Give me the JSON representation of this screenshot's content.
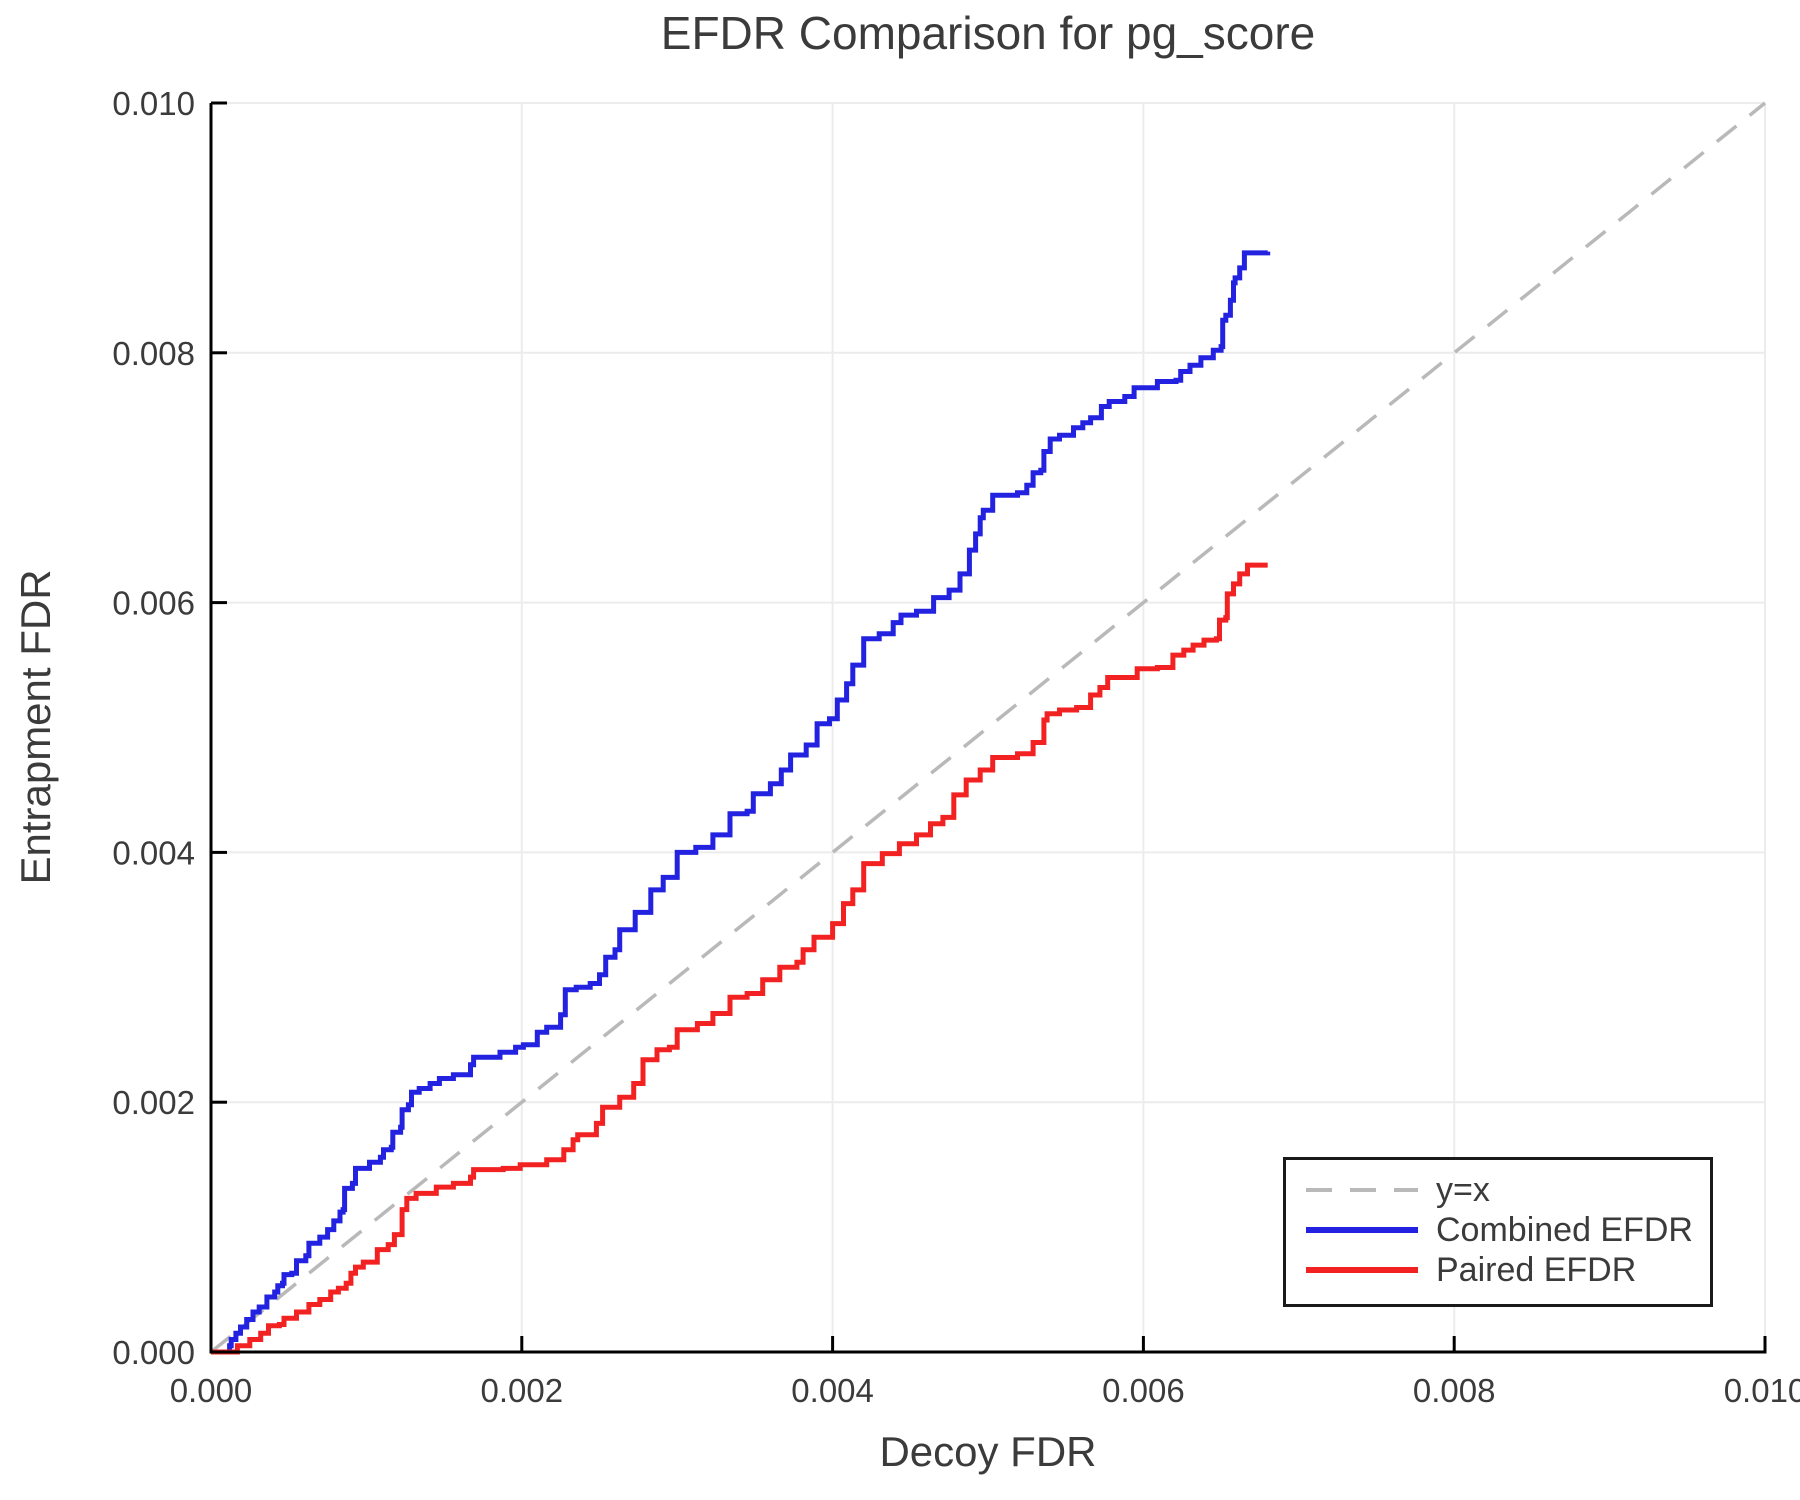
{
  "title": "EFDR Comparison for pg_score",
  "legend": {
    "items": [
      {
        "label": "y=x",
        "color": "#b9b9b9",
        "dashed": true
      },
      {
        "label": "Combined EFDR",
        "color": "#2222e0",
        "dashed": false
      },
      {
        "label": "Paired EFDR",
        "color": "#f22222",
        "dashed": false
      }
    ]
  },
  "chart_data": {
    "type": "line",
    "title": "EFDR Comparison for pg_score",
    "xlabel": "Decoy FDR",
    "ylabel": "Entrapment FDR",
    "xlim": [
      0,
      0.01
    ],
    "ylim": [
      0,
      0.01
    ],
    "xticks": [
      0,
      0.002,
      0.004,
      0.006,
      0.008,
      0.01
    ],
    "xtick_labels": [
      "0.000",
      "0.002",
      "0.004",
      "0.006",
      "0.008",
      "0.010"
    ],
    "yticks": [
      0,
      0.002,
      0.004,
      0.006,
      0.008,
      0.01
    ],
    "ytick_labels": [
      "0.000",
      "0.002",
      "0.004",
      "0.006",
      "0.008",
      "0.010"
    ],
    "grid": true,
    "legend_position": "lower right",
    "style": {
      "grid_color": "#ececec",
      "spine_color": "#000000",
      "text_color": "#3b3b3b",
      "background": "#ffffff"
    },
    "reference_line": {
      "label": "y=x",
      "style": "dashed",
      "color": "#b9b9b9",
      "from": [
        0,
        0
      ],
      "to": [
        0.01,
        0.01
      ]
    },
    "series": [
      {
        "name": "Combined EFDR",
        "color": "#2222e0",
        "style": "step",
        "points": [
          [
            0,
            0
          ],
          [
            0.00012,
            5e-05
          ],
          [
            0.00013,
            0.0001
          ],
          [
            0.00016,
            0.00015
          ],
          [
            0.00019,
            0.0002
          ],
          [
            0.00023,
            0.00026
          ],
          [
            0.00027,
            0.00032
          ],
          [
            0.00031,
            0.00036
          ],
          [
            0.00036,
            0.00044
          ],
          [
            0.00041,
            0.00048
          ],
          [
            0.00043,
            0.00053
          ],
          [
            0.00046,
            0.00055
          ],
          [
            0.00047,
            0.00062
          ],
          [
            0.00052,
            0.00063
          ],
          [
            0.00055,
            0.00073
          ],
          [
            0.00061,
            0.00077
          ],
          [
            0.00063,
            0.00087
          ],
          [
            0.0007,
            0.00092
          ],
          [
            0.00075,
            0.00098
          ],
          [
            0.00079,
            0.00105
          ],
          [
            0.00083,
            0.00112
          ],
          [
            0.00085,
            0.00114
          ],
          [
            0.00086,
            0.00131
          ],
          [
            0.00091,
            0.00135
          ],
          [
            0.00093,
            0.00147
          ],
          [
            0.00102,
            0.00152
          ],
          [
            0.00109,
            0.00156
          ],
          [
            0.00111,
            0.00162
          ],
          [
            0.00116,
            0.00164
          ],
          [
            0.00117,
            0.00176
          ],
          [
            0.00122,
            0.0018
          ],
          [
            0.00123,
            0.00194
          ],
          [
            0.00127,
            0.00198
          ],
          [
            0.00129,
            0.00208
          ],
          [
            0.00134,
            0.00211
          ],
          [
            0.00141,
            0.00215
          ],
          [
            0.00147,
            0.00219
          ],
          [
            0.00156,
            0.00222
          ],
          [
            0.00167,
            0.0023
          ],
          [
            0.00169,
            0.00236
          ],
          [
            0.00186,
            0.0024
          ],
          [
            0.00196,
            0.00244
          ],
          [
            0.00201,
            0.00246
          ],
          [
            0.0021,
            0.00256
          ],
          [
            0.00216,
            0.0026
          ],
          [
            0.00225,
            0.0027
          ],
          [
            0.00228,
            0.0029
          ],
          [
            0.00235,
            0.00292
          ],
          [
            0.00244,
            0.00295
          ],
          [
            0.0025,
            0.00302
          ],
          [
            0.00254,
            0.00316
          ],
          [
            0.0026,
            0.00322
          ],
          [
            0.00263,
            0.00338
          ],
          [
            0.00273,
            0.00352
          ],
          [
            0.00283,
            0.0037
          ],
          [
            0.00291,
            0.0038
          ],
          [
            0.003,
            0.004
          ],
          [
            0.00312,
            0.00404
          ],
          [
            0.00323,
            0.00414
          ],
          [
            0.00334,
            0.00431
          ],
          [
            0.00345,
            0.00433
          ],
          [
            0.00349,
            0.00447
          ],
          [
            0.0036,
            0.00455
          ],
          [
            0.00367,
            0.00466
          ],
          [
            0.00373,
            0.00478
          ],
          [
            0.00383,
            0.00486
          ],
          [
            0.0039,
            0.00503
          ],
          [
            0.00398,
            0.00507
          ],
          [
            0.00403,
            0.00522
          ],
          [
            0.00409,
            0.00535
          ],
          [
            0.00413,
            0.0055
          ],
          [
            0.0042,
            0.00571
          ],
          [
            0.0043,
            0.00575
          ],
          [
            0.00439,
            0.00584
          ],
          [
            0.00444,
            0.0059
          ],
          [
            0.00454,
            0.00593
          ],
          [
            0.00465,
            0.00604
          ],
          [
            0.00475,
            0.0061
          ],
          [
            0.00482,
            0.00623
          ],
          [
            0.00488,
            0.00642
          ],
          [
            0.00492,
            0.00655
          ],
          [
            0.00495,
            0.00668
          ],
          [
            0.00497,
            0.00674
          ],
          [
            0.00503,
            0.00686
          ],
          [
            0.00519,
            0.00688
          ],
          [
            0.00525,
            0.00694
          ],
          [
            0.00529,
            0.00704
          ],
          [
            0.00534,
            0.00706
          ],
          [
            0.00536,
            0.00721
          ],
          [
            0.0054,
            0.00731
          ],
          [
            0.00546,
            0.00734
          ],
          [
            0.00555,
            0.0074
          ],
          [
            0.00561,
            0.00744
          ],
          [
            0.00566,
            0.00748
          ],
          [
            0.00573,
            0.00757
          ],
          [
            0.00578,
            0.00761
          ],
          [
            0.00588,
            0.00765
          ],
          [
            0.00594,
            0.00772
          ],
          [
            0.00609,
            0.00777
          ],
          [
            0.00621,
            0.00778
          ],
          [
            0.00624,
            0.00785
          ],
          [
            0.0063,
            0.0079
          ],
          [
            0.00637,
            0.00796
          ],
          [
            0.00645,
            0.00802
          ],
          [
            0.0065,
            0.00805
          ],
          [
            0.00651,
            0.00826
          ],
          [
            0.00653,
            0.0083
          ],
          [
            0.00656,
            0.00842
          ],
          [
            0.00658,
            0.00856
          ],
          [
            0.00659,
            0.0086
          ],
          [
            0.00662,
            0.00868
          ],
          [
            0.00665,
            0.0088
          ],
          [
            0.0068,
            0.00881
          ]
        ]
      },
      {
        "name": "Paired EFDR",
        "color": "#f22222",
        "style": "step",
        "points": [
          [
            0,
            0
          ],
          [
            0.00012,
            0
          ],
          [
            0.00017,
            5e-05
          ],
          [
            0.00025,
            0.0001
          ],
          [
            0.00032,
            0.00015
          ],
          [
            0.00037,
            0.00021
          ],
          [
            0.00044,
            0.00022
          ],
          [
            0.00047,
            0.00027
          ],
          [
            0.00055,
            0.00032
          ],
          [
            0.00063,
            0.00038
          ],
          [
            0.0007,
            0.00042
          ],
          [
            0.00077,
            0.00048
          ],
          [
            0.00082,
            0.00051
          ],
          [
            0.00087,
            0.00055
          ],
          [
            0.0009,
            0.00063
          ],
          [
            0.00093,
            0.00068
          ],
          [
            0.00098,
            0.00072
          ],
          [
            0.00107,
            0.00082
          ],
          [
            0.00114,
            0.00086
          ],
          [
            0.00118,
            0.00094
          ],
          [
            0.00123,
            0.00114
          ],
          [
            0.00126,
            0.00123
          ],
          [
            0.00132,
            0.00127
          ],
          [
            0.00145,
            0.00132
          ],
          [
            0.00156,
            0.00135
          ],
          [
            0.00167,
            0.0014
          ],
          [
            0.00169,
            0.00146
          ],
          [
            0.00188,
            0.00147
          ],
          [
            0.00199,
            0.0015
          ],
          [
            0.00216,
            0.00154
          ],
          [
            0.00227,
            0.00162
          ],
          [
            0.00233,
            0.0017
          ],
          [
            0.00236,
            0.00174
          ],
          [
            0.00248,
            0.00183
          ],
          [
            0.00252,
            0.00196
          ],
          [
            0.00263,
            0.00204
          ],
          [
            0.00272,
            0.00215
          ],
          [
            0.00278,
            0.00234
          ],
          [
            0.00287,
            0.00242
          ],
          [
            0.00295,
            0.00244
          ],
          [
            0.003,
            0.00258
          ],
          [
            0.00313,
            0.00263
          ],
          [
            0.00323,
            0.00271
          ],
          [
            0.00334,
            0.00284
          ],
          [
            0.00345,
            0.00287
          ],
          [
            0.00355,
            0.00298
          ],
          [
            0.00366,
            0.00308
          ],
          [
            0.00377,
            0.00312
          ],
          [
            0.00381,
            0.00322
          ],
          [
            0.00388,
            0.00332
          ],
          [
            0.004,
            0.00343
          ],
          [
            0.00407,
            0.00359
          ],
          [
            0.00413,
            0.0037
          ],
          [
            0.0042,
            0.00391
          ],
          [
            0.00432,
            0.00399
          ],
          [
            0.00443,
            0.00407
          ],
          [
            0.00454,
            0.00414
          ],
          [
            0.00463,
            0.00423
          ],
          [
            0.00471,
            0.00428
          ],
          [
            0.00478,
            0.00446
          ],
          [
            0.00486,
            0.00458
          ],
          [
            0.00495,
            0.00466
          ],
          [
            0.00503,
            0.00476
          ],
          [
            0.00519,
            0.00479
          ],
          [
            0.00529,
            0.00488
          ],
          [
            0.00536,
            0.00506
          ],
          [
            0.00538,
            0.00511
          ],
          [
            0.00546,
            0.00514
          ],
          [
            0.00557,
            0.00516
          ],
          [
            0.00566,
            0.00526
          ],
          [
            0.00572,
            0.00532
          ],
          [
            0.00577,
            0.0054
          ],
          [
            0.00587,
            0.0054
          ],
          [
            0.00596,
            0.00547
          ],
          [
            0.00609,
            0.00548
          ],
          [
            0.00619,
            0.00558
          ],
          [
            0.00626,
            0.00562
          ],
          [
            0.00632,
            0.00566
          ],
          [
            0.00639,
            0.0057
          ],
          [
            0.00647,
            0.00571
          ],
          [
            0.00649,
            0.00586
          ],
          [
            0.00653,
            0.00588
          ],
          [
            0.00654,
            0.00607
          ],
          [
            0.00658,
            0.00615
          ],
          [
            0.00662,
            0.00623
          ],
          [
            0.00667,
            0.0063
          ],
          [
            0.0068,
            0.0063
          ]
        ]
      }
    ]
  }
}
